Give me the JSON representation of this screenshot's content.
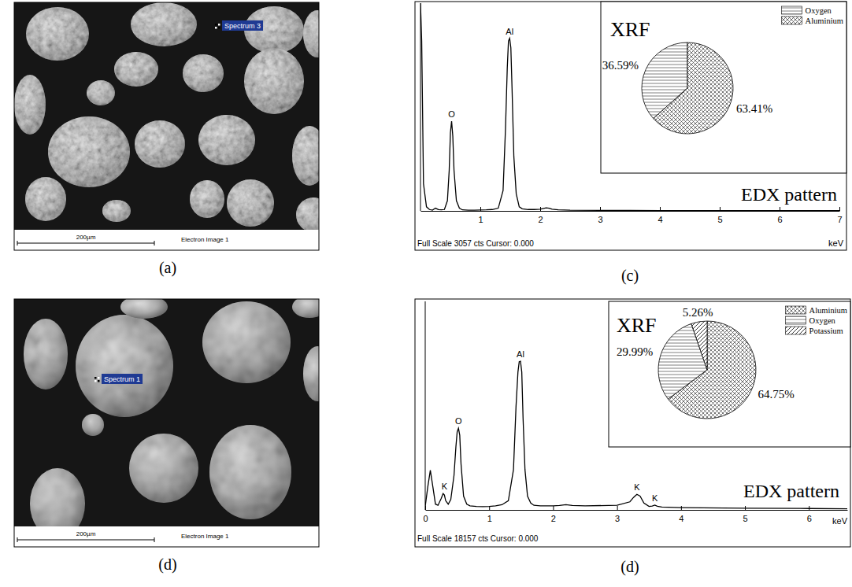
{
  "images": [
    {
      "panel": "(a)",
      "marker_label": "Spectrum 3",
      "scale_bar": "200µm",
      "caption": "Electron Image 1"
    },
    {
      "panel": "(d)",
      "marker_label": "Spectrum 1",
      "scale_bar": "200µm",
      "caption": "Electron Image 1"
    }
  ],
  "chart_data": [
    {
      "type": "line",
      "panel": "(c)",
      "title": "EDX pattern",
      "footer": "Full Scale 3057 cts Cursor: 0.000",
      "x_label": "keV",
      "x": [
        0,
        0.02,
        0.05,
        0.1,
        0.15,
        0.2,
        0.25,
        0.3,
        0.35,
        0.4,
        0.45,
        0.48,
        0.5,
        0.52,
        0.54,
        0.56,
        0.6,
        0.65,
        0.7,
        0.8,
        0.9,
        1.0,
        1.1,
        1.2,
        1.3,
        1.38,
        1.42,
        1.45,
        1.47,
        1.49,
        1.51,
        1.53,
        1.56,
        1.6,
        1.65,
        1.7,
        1.8,
        1.9,
        2.0,
        2.1,
        2.15,
        2.2,
        2.3,
        2.5,
        3,
        3.5,
        4,
        5,
        6,
        7
      ],
      "values": [
        3057,
        2500,
        400,
        60,
        20,
        10,
        40,
        20,
        15,
        20,
        150,
        600,
        1150,
        1320,
        1100,
        600,
        150,
        40,
        15,
        10,
        10,
        12,
        15,
        20,
        40,
        300,
        1200,
        2100,
        2500,
        2540,
        2400,
        1800,
        800,
        250,
        60,
        30,
        20,
        20,
        25,
        45,
        40,
        25,
        15,
        10,
        8,
        6,
        5,
        4,
        3,
        3
      ],
      "xlim": [
        0,
        7
      ],
      "xticks": [
        1,
        2,
        3,
        4,
        5,
        6,
        7
      ],
      "ylim": [
        0,
        3057
      ],
      "tick_labels": "x",
      "color": "#000000",
      "annotations": [
        {
          "text": "O",
          "x": 0.52,
          "y": 1320
        },
        {
          "text": "Al",
          "x": 1.49,
          "y": 2540
        }
      ]
    },
    {
      "type": "pie",
      "title": "XRF",
      "categories": [
        "Oxygen",
        "Aluminium"
      ],
      "values": [
        36.59,
        63.41
      ],
      "value_labels": [
        "36.59%",
        "63.41%"
      ],
      "data_labels": true,
      "legend": "top-right",
      "colors": [
        "#707070",
        "#505050"
      ]
    },
    {
      "type": "line",
      "panel": "(d)",
      "title": "EDX pattern",
      "footer": "Full Scale 18157 cts Cursor: 0.000",
      "x_label": "keV",
      "x": [
        0,
        0.04,
        0.08,
        0.12,
        0.16,
        0.2,
        0.25,
        0.28,
        0.3,
        0.32,
        0.36,
        0.4,
        0.45,
        0.48,
        0.5,
        0.52,
        0.54,
        0.56,
        0.6,
        0.65,
        0.7,
        0.8,
        0.9,
        1.0,
        1.1,
        1.2,
        1.3,
        1.38,
        1.42,
        1.45,
        1.47,
        1.49,
        1.51,
        1.53,
        1.56,
        1.6,
        1.65,
        1.7,
        1.8,
        2.0,
        2.1,
        2.2,
        2.3,
        2.5,
        3.0,
        3.2,
        3.26,
        3.31,
        3.36,
        3.42,
        3.5,
        3.55,
        3.59,
        3.63,
        3.7,
        4.0,
        5.0,
        6.0,
        6.6
      ],
      "values": [
        300,
        2000,
        3455,
        2000,
        500,
        400,
        1000,
        1420,
        1300,
        800,
        500,
        900,
        3000,
        5500,
        6800,
        7110,
        6500,
        4000,
        1200,
        500,
        350,
        300,
        280,
        300,
        350,
        450,
        800,
        3500,
        9000,
        12000,
        12900,
        12940,
        12000,
        8000,
        3500,
        1200,
        600,
        400,
        350,
        350,
        380,
        450,
        380,
        350,
        400,
        700,
        1100,
        1350,
        1200,
        600,
        300,
        340,
        420,
        320,
        250,
        200,
        150,
        120,
        100
      ],
      "xlim": [
        0,
        6.6
      ],
      "xticks": [
        0,
        1,
        2,
        3,
        4,
        5,
        6
      ],
      "ylim": [
        0,
        18157
      ],
      "tick_labels": "x",
      "color": "#000000",
      "annotations": [
        {
          "text": "K",
          "x": 0.3,
          "y": 1420
        },
        {
          "text": "O",
          "x": 0.52,
          "y": 7110
        },
        {
          "text": "Al",
          "x": 1.49,
          "y": 12940
        },
        {
          "text": "K",
          "x": 3.31,
          "y": 1350
        },
        {
          "text": "K",
          "x": 3.59,
          "y": 420
        }
      ]
    },
    {
      "type": "pie",
      "title": "XRF",
      "categories": [
        "Aluminium",
        "Oxygen",
        "Potassium"
      ],
      "values": [
        64.75,
        29.99,
        5.26
      ],
      "value_labels": [
        "64.75%",
        "29.99%",
        "5.26%"
      ],
      "data_labels": true,
      "legend": "top-right",
      "colors": [
        "#505050",
        "#707070",
        "#303030"
      ]
    }
  ]
}
